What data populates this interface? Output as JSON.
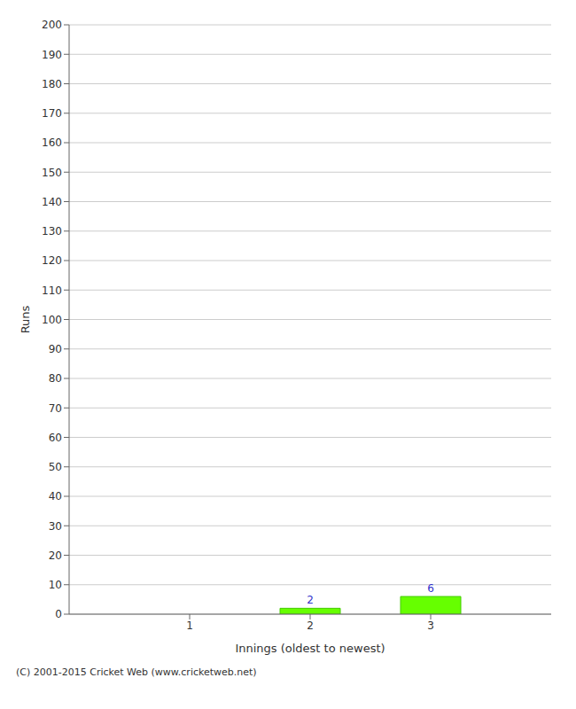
{
  "chart_data": {
    "type": "bar",
    "x": [
      1,
      2,
      3
    ],
    "values": [
      0,
      2,
      6
    ],
    "color": "#66ff00",
    "xlabel": "Innings (oldest to newest)",
    "ylabel": "Runs",
    "xlim": [
      0,
      4
    ],
    "xticks": [
      1,
      2,
      3
    ],
    "ylim": [
      0,
      200
    ],
    "yticks": [
      0,
      10,
      20,
      30,
      40,
      50,
      60,
      70,
      80,
      90,
      100,
      110,
      120,
      130,
      140,
      150,
      160,
      170,
      180,
      190,
      200
    ],
    "grid": true,
    "data_labels": true,
    "annotations": [
      "(C) 2001-2015 Cricket Web (www.cricketweb.net)"
    ]
  }
}
